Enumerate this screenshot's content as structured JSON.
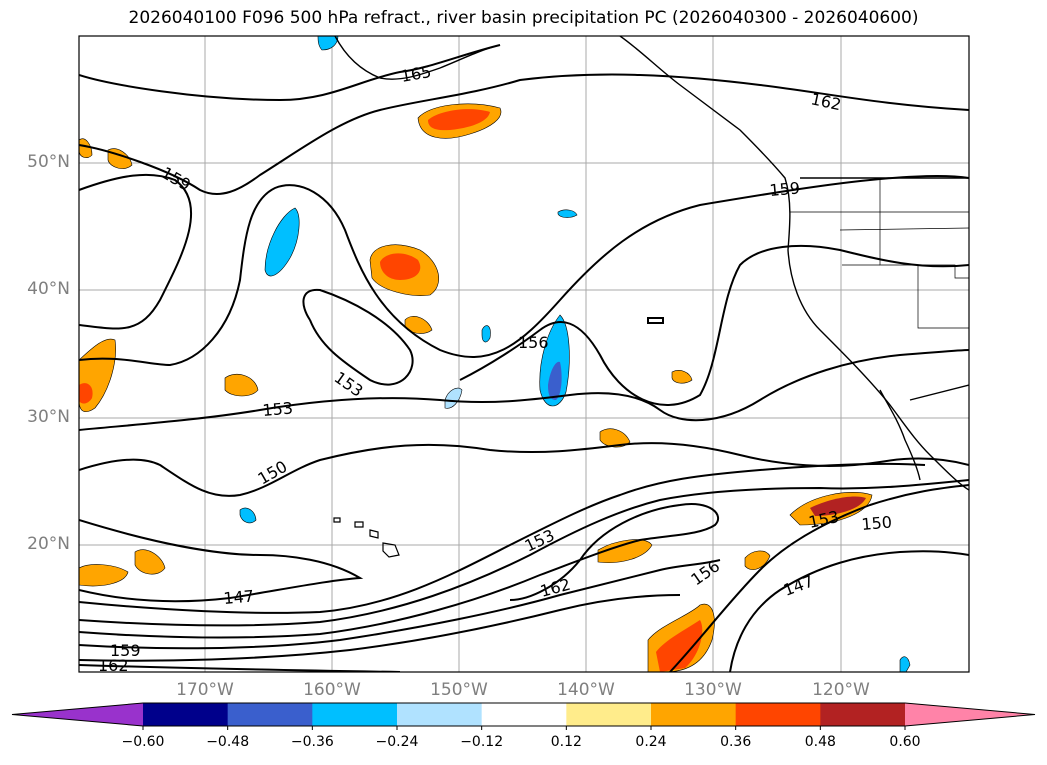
{
  "title": "2026040100 F096 500 hPa refract., river basin precipitation PC (2026040300 - 2026040600)",
  "map": {
    "lat_labels": [
      "50°N",
      "40°N",
      "30°N",
      "20°N"
    ],
    "lon_labels": [
      "170°W",
      "160°W",
      "150°W",
      "140°W",
      "130°W",
      "120°W"
    ],
    "contour_labels": [
      "165",
      "162",
      "159",
      "159",
      "156",
      "153",
      "153",
      "150",
      "153",
      "162",
      "147",
      "156",
      "153",
      "150",
      "147",
      "159",
      "162"
    ]
  },
  "colorbar": {
    "ticks": [
      "−0.60",
      "−0.48",
      "−0.36",
      "−0.24",
      "−0.12",
      "0.12",
      "0.24",
      "0.36",
      "0.48",
      "0.60"
    ],
    "colors": [
      "#9932cc",
      "#00008b",
      "#3a5fcd",
      "#00bfff",
      "#b0e2ff",
      "#ffffff",
      "#ffec8b",
      "#ffa500",
      "#ff4500",
      "#b22222",
      "#ff83a8"
    ]
  }
}
